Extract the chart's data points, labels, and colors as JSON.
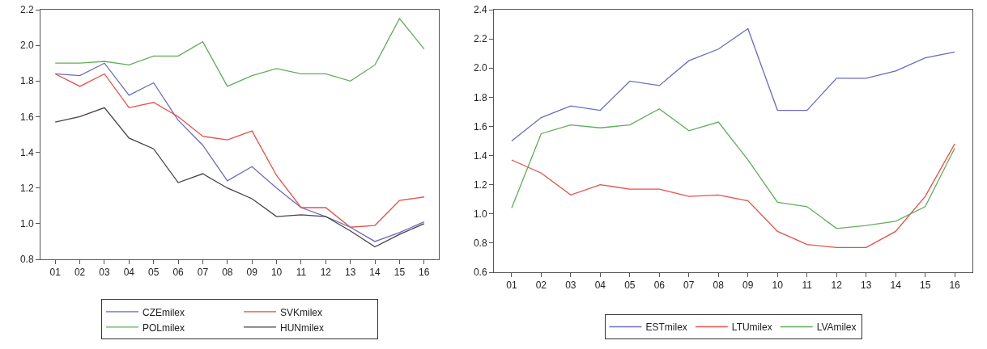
{
  "chart_data": [
    {
      "type": "line",
      "categories": [
        "01",
        "02",
        "03",
        "04",
        "05",
        "06",
        "07",
        "08",
        "09",
        "10",
        "11",
        "12",
        "13",
        "14",
        "15",
        "16"
      ],
      "ylim": [
        0.8,
        2.2
      ],
      "yticks": [
        {
          "value": 0.8,
          "label": "0.8"
        },
        {
          "value": 1,
          "label": "1.0"
        },
        {
          "value": 1.2,
          "label": "1.2"
        },
        {
          "value": 1.4,
          "label": "1.4"
        },
        {
          "value": 1.6,
          "label": "1.6"
        },
        {
          "value": 1.8,
          "label": "1.8"
        },
        {
          "value": 2,
          "label": "2.0"
        },
        {
          "value": 2.2,
          "label": "2.2"
        }
      ],
      "grid": false,
      "legend": "bottom",
      "marker": "none",
      "line_style": "solid",
      "series": [
        {
          "name": "CZEmilex",
          "color": "#6b6bc0",
          "values": [
            1.84,
            1.83,
            1.9,
            1.72,
            1.79,
            1.58,
            1.44,
            1.24,
            1.32,
            1.2,
            1.09,
            1.04,
            0.98,
            0.9,
            0.95,
            1.01
          ]
        },
        {
          "name": "SVKmilex",
          "color": "#e8504a",
          "values": [
            1.84,
            1.77,
            1.84,
            1.65,
            1.68,
            1.6,
            1.49,
            1.47,
            1.52,
            1.27,
            1.09,
            1.09,
            0.98,
            0.99,
            1.13,
            1.15
          ]
        },
        {
          "name": "POLmilex",
          "color": "#5fae5a",
          "values": [
            1.9,
            1.9,
            1.91,
            1.89,
            1.94,
            1.94,
            2.02,
            1.77,
            1.83,
            1.87,
            1.84,
            1.84,
            1.8,
            1.89,
            2.15,
            1.98
          ]
        },
        {
          "name": "HUNmilex",
          "color": "#4a4040",
          "values": [
            1.57,
            1.6,
            1.65,
            1.48,
            1.42,
            1.23,
            1.28,
            1.2,
            1.14,
            1.04,
            1.05,
            1.04,
            0.96,
            0.87,
            0.94,
            1.0
          ]
        }
      ]
    },
    {
      "type": "line",
      "categories": [
        "01",
        "02",
        "03",
        "04",
        "05",
        "06",
        "07",
        "08",
        "09",
        "10",
        "11",
        "12",
        "13",
        "14",
        "15",
        "16"
      ],
      "ylim": [
        0.6,
        2.4
      ],
      "yticks": [
        {
          "value": 0.6,
          "label": "0.6"
        },
        {
          "value": 0.8,
          "label": "0.8"
        },
        {
          "value": 1,
          "label": "1.0"
        },
        {
          "value": 1.2,
          "label": "1.2"
        },
        {
          "value": 1.4,
          "label": "1.4"
        },
        {
          "value": 1.6,
          "label": "1.6"
        },
        {
          "value": 1.8,
          "label": "1.8"
        },
        {
          "value": 2,
          "label": "2.0"
        },
        {
          "value": 2.2,
          "label": "2.2"
        },
        {
          "value": 2.4,
          "label": "2.4"
        }
      ],
      "grid": false,
      "legend": "bottom",
      "marker": "none",
      "line_style": "solid",
      "series": [
        {
          "name": "ESTmilex",
          "color": "#6b6bc0",
          "values": [
            1.5,
            1.66,
            1.74,
            1.71,
            1.91,
            1.88,
            2.05,
            2.13,
            2.27,
            1.71,
            1.71,
            1.93,
            1.93,
            1.98,
            2.07,
            2.11
          ]
        },
        {
          "name": "LTUmilex",
          "color": "#e8504a",
          "values": [
            1.37,
            1.28,
            1.13,
            1.2,
            1.17,
            1.17,
            1.12,
            1.13,
            1.09,
            0.88,
            0.79,
            0.77,
            0.77,
            0.88,
            1.12,
            1.48
          ]
        },
        {
          "name": "LVAmilex",
          "color": "#5fae5a",
          "values": [
            1.04,
            1.55,
            1.61,
            1.59,
            1.61,
            1.72,
            1.57,
            1.63,
            1.37,
            1.08,
            1.05,
            0.9,
            0.92,
            0.95,
            1.05,
            1.45
          ]
        }
      ]
    }
  ]
}
